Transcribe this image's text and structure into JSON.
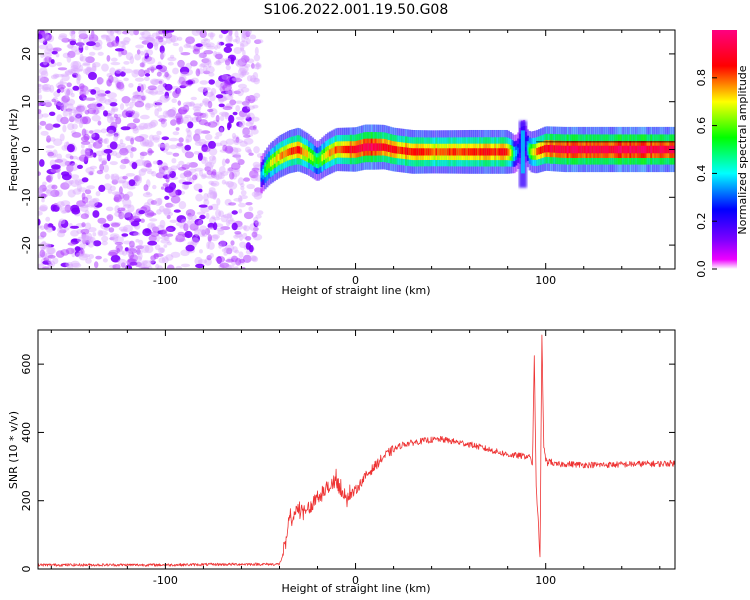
{
  "page": {
    "title": "S106.2022.001.19.50.G08"
  },
  "chart_data": [
    {
      "type": "heatmap",
      "xlabel": "Height of straight line (km)",
      "ylabel": "Frequency (Hz)",
      "xlim": [
        -167,
        168
      ],
      "ylim": [
        -25,
        25
      ],
      "xticks": [
        -100,
        0,
        100
      ],
      "yticks": [
        -20,
        -10,
        0,
        10,
        20
      ],
      "grid": false,
      "colorbar": {
        "label": "Normalized spectral amplitude",
        "range": [
          0,
          1
        ],
        "ticks": [
          0.0,
          0.2,
          0.4,
          0.6,
          0.8
        ],
        "colormap": [
          "#ffffff",
          "#ee00ff",
          "#7f00ff",
          "#0000ff",
          "#00ffff",
          "#00ff00",
          "#ffff00",
          "#ff0000",
          "#ff0080"
        ]
      },
      "noise_region_x": [
        -167,
        -50
      ],
      "ridge": {
        "x": [
          -50,
          -45,
          -40,
          -35,
          -30,
          -25,
          -20,
          -15,
          -10,
          -5,
          0,
          5,
          10,
          15,
          20,
          30,
          40,
          50,
          60,
          70,
          80,
          84,
          86,
          88,
          90,
          92,
          95,
          100,
          110,
          120,
          130,
          140,
          150,
          160,
          168
        ],
        "frequency": [
          -5.5,
          -3,
          -1.5,
          -0.5,
          0,
          -1,
          -2.5,
          -1,
          0,
          0,
          0,
          0.5,
          0.5,
          0.5,
          0,
          -0.5,
          -0.5,
          -0.5,
          -0.5,
          -0.5,
          -0.5,
          -1,
          0,
          3,
          0.5,
          -0.5,
          -0.5,
          0.2,
          0,
          0,
          0,
          0,
          0,
          0,
          0
        ],
        "amplitude": [
          0.35,
          0.65,
          0.75,
          0.8,
          0.85,
          0.7,
          0.55,
          0.75,
          0.8,
          0.85,
          0.9,
          0.95,
          0.95,
          0.9,
          0.85,
          0.85,
          0.8,
          0.82,
          0.85,
          0.85,
          0.85,
          0.4,
          0.3,
          0.3,
          0.35,
          0.6,
          0.8,
          0.9,
          0.95,
          0.95,
          0.95,
          0.95,
          0.95,
          0.95,
          0.95
        ]
      }
    },
    {
      "type": "line",
      "xlabel": "Height of straight line (km)",
      "ylabel": "SNR (10 * v/v)",
      "xlim": [
        -167,
        168
      ],
      "ylim": [
        0,
        700
      ],
      "xticks": [
        -100,
        0,
        100
      ],
      "yticks": [
        0,
        200,
        400,
        600
      ],
      "grid": false,
      "series": [
        {
          "color": "#ee3333",
          "x": [
            -167,
            -140,
            -100,
            -60,
            -40,
            -37,
            -35,
            -32,
            -30,
            -25,
            -20,
            -15,
            -10,
            -5,
            0,
            5,
            10,
            15,
            20,
            25,
            30,
            35,
            40,
            45,
            50,
            60,
            70,
            80,
            85,
            90,
            92,
            93,
            94,
            95,
            96,
            97,
            98,
            99,
            100,
            101,
            102,
            105,
            110,
            120,
            130,
            140,
            150,
            160,
            168
          ],
          "y": [
            12,
            12,
            12,
            14,
            14,
            60,
            140,
            160,
            170,
            175,
            215,
            235,
            250,
            205,
            230,
            270,
            300,
            330,
            350,
            365,
            370,
            375,
            378,
            380,
            375,
            365,
            350,
            335,
            332,
            330,
            330,
            300,
            620,
            240,
            150,
            30,
            680,
            360,
            320,
            310,
            318,
            305,
            308,
            305,
            305,
            306,
            308,
            308,
            310
          ]
        }
      ]
    }
  ]
}
